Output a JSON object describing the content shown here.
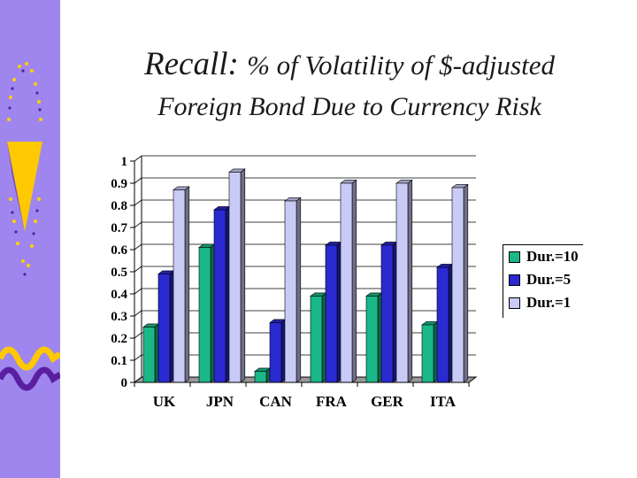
{
  "slide": {
    "title_lead": "Recall:",
    "title_rest": "% of Volatility of $-adjusted",
    "title_line2": "Foreign Bond Due to Currency Risk"
  },
  "colors": {
    "sidebar": "#9e86ee",
    "accent_yellow": "#ffc800",
    "accent_purple": "#5a1fa0"
  },
  "chart_data": {
    "type": "bar",
    "categories": [
      "UK",
      "JPN",
      "CAN",
      "FRA",
      "GER",
      "ITA"
    ],
    "series": [
      {
        "name": "Dur.=10",
        "color": "#1ab888",
        "values": [
          0.25,
          0.61,
          0.05,
          0.39,
          0.39,
          0.26
        ]
      },
      {
        "name": "Dur.=5",
        "color": "#2a2ad0",
        "values": [
          0.49,
          0.78,
          0.27,
          0.62,
          0.62,
          0.52
        ]
      },
      {
        "name": "Dur.=1",
        "color": "#c9cbf6",
        "values": [
          0.87,
          0.95,
          0.82,
          0.9,
          0.9,
          0.88
        ]
      }
    ],
    "yticks": [
      "0",
      "0.1",
      "0.2",
      "0.3",
      "0.4",
      "0.5",
      "0.6",
      "0.7",
      "0.8",
      "0.9",
      "1"
    ],
    "ylim": [
      0,
      1
    ],
    "grid": true,
    "legend_position": "right",
    "three_d": true
  }
}
